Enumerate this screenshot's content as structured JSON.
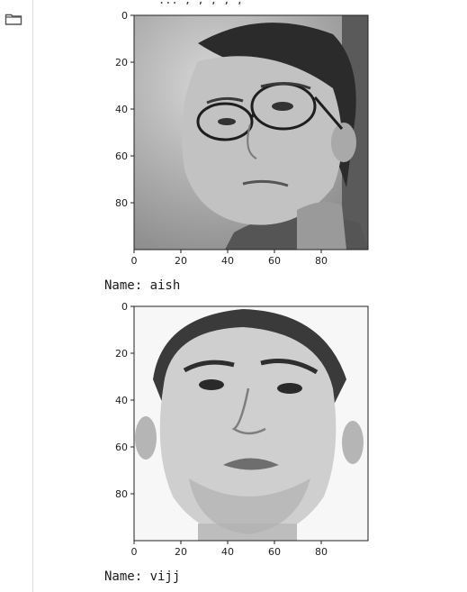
{
  "cut_text": "... , , , , ,",
  "gutter": {
    "icon": "folder-icon"
  },
  "outputs": [
    {
      "x_ticks": [
        "0",
        "20",
        "40",
        "60",
        "80"
      ],
      "y_ticks": [
        "0",
        "20",
        "40",
        "60",
        "80"
      ],
      "xlim": [
        0,
        100
      ],
      "ylim": [
        100,
        0
      ],
      "image": "grayscale face photo",
      "name_line": "Name: aish"
    },
    {
      "x_ticks": [
        "0",
        "20",
        "40",
        "60",
        "80"
      ],
      "y_ticks": [
        "0",
        "20",
        "40",
        "60",
        "80"
      ],
      "xlim": [
        0,
        100
      ],
      "ylim": [
        100,
        0
      ],
      "image": "grayscale face photo",
      "name_line": "Name: vijj"
    }
  ]
}
